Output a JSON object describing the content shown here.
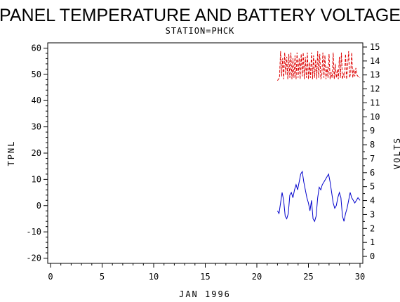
{
  "chart_data": {
    "type": "line",
    "title": "PANEL TEMPERATURE AND BATTERY VOLTAGE",
    "subtitle": "STATION=PHCK",
    "xlabel": "JAN 1996",
    "ylabel": "TPNL",
    "y2label": "VOLTS",
    "xlim": [
      0,
      30
    ],
    "ylim": [
      -22,
      62
    ],
    "y2lim": [
      -0.5,
      15.3
    ],
    "x_ticks": [
      0,
      5,
      10,
      15,
      20,
      25,
      30
    ],
    "y_ticks": [
      -20,
      -10,
      0,
      10,
      20,
      30,
      40,
      50,
      60
    ],
    "y2_ticks": [
      0,
      1,
      2,
      3,
      4,
      5,
      6,
      7,
      8,
      9,
      10,
      11,
      12,
      13,
      14,
      15
    ],
    "grid": false,
    "series": [
      {
        "axis": "left",
        "color": "#0000cc",
        "style": "solid",
        "x": [
          22.0,
          22.15,
          22.3,
          22.45,
          22.6,
          22.75,
          22.9,
          23.05,
          23.2,
          23.35,
          23.5,
          23.65,
          23.8,
          23.95,
          24.1,
          24.25,
          24.4,
          24.55,
          24.7,
          24.85,
          25.0,
          25.15,
          25.3,
          25.45,
          25.6,
          25.75,
          25.9,
          26.05,
          26.2,
          26.35,
          26.5,
          26.65,
          26.8,
          26.95,
          27.1,
          27.25,
          27.4,
          27.55,
          27.7,
          27.85,
          28.0,
          28.15,
          28.3,
          28.45,
          28.6,
          28.75,
          28.9,
          29.05,
          29.2,
          29.35,
          29.5,
          29.65,
          29.8,
          30.0
        ],
        "y": [
          -2,
          -3,
          1,
          5,
          2,
          -4,
          -5,
          -3,
          4,
          5,
          3,
          6,
          8,
          6,
          9,
          12,
          13,
          9,
          6,
          3,
          1,
          -2,
          2,
          -5,
          -6,
          -4,
          3,
          7,
          6,
          8,
          9,
          10,
          11,
          12,
          9,
          5,
          1,
          -1,
          0,
          3,
          5,
          3,
          -4,
          -6,
          -3,
          -1,
          2,
          5,
          3,
          2,
          1,
          2,
          3,
          2
        ]
      },
      {
        "axis": "right",
        "color": "#dd0000",
        "style": "dashed",
        "x": [
          22.0,
          22.1,
          22.2,
          22.3,
          22.4,
          22.5,
          22.6,
          22.7,
          22.8,
          22.9,
          23.0,
          23.1,
          23.2,
          23.3,
          23.4,
          23.5,
          23.6,
          23.7,
          23.8,
          23.9,
          24.0,
          24.1,
          24.2,
          24.3,
          24.4,
          24.5,
          24.6,
          24.7,
          24.8,
          24.9,
          25.0,
          25.1,
          25.2,
          25.3,
          25.4,
          25.5,
          25.6,
          25.7,
          25.8,
          25.9,
          26.0,
          26.1,
          26.2,
          26.3,
          26.4,
          26.5,
          26.6,
          26.7,
          26.8,
          26.9,
          27.0,
          27.1,
          27.2,
          27.3,
          27.4,
          27.5,
          27.6,
          27.7,
          27.8,
          27.9,
          28.0,
          28.1,
          28.2,
          28.3,
          28.4,
          28.5,
          28.6,
          28.7,
          28.8,
          28.9,
          29.0,
          29.1,
          29.2,
          29.3,
          29.4,
          29.5,
          29.6,
          29.7,
          29.8,
          30.0
        ],
        "y": [
          12.6,
          12.7,
          12.8,
          14.7,
          12.9,
          14.2,
          12.7,
          14.6,
          13.0,
          14.3,
          12.7,
          14.5,
          12.8,
          14.6,
          12.7,
          14.2,
          12.8,
          14.4,
          12.7,
          14.6,
          12.8,
          14.2,
          12.7,
          14.5,
          12.9,
          14.6,
          12.7,
          14.3,
          12.8,
          14.6,
          12.7,
          13.9,
          12.8,
          14.6,
          12.7,
          14.4,
          12.8,
          14.1,
          12.7,
          14.7,
          12.8,
          14.5,
          12.7,
          13.0,
          14.6,
          12.8,
          14.4,
          12.7,
          13.6,
          12.8,
          14.5,
          12.7,
          13.2,
          12.8,
          14.6,
          12.7,
          13.8,
          12.8,
          13.4,
          12.7,
          14.3,
          12.8,
          14.6,
          12.7,
          13.1,
          12.8,
          14.5,
          12.7,
          13.6,
          14.7,
          12.8,
          13.2,
          14.6,
          12.8,
          13.4,
          12.9,
          13.5,
          13.0,
          12.9,
          12.8
        ]
      }
    ]
  }
}
